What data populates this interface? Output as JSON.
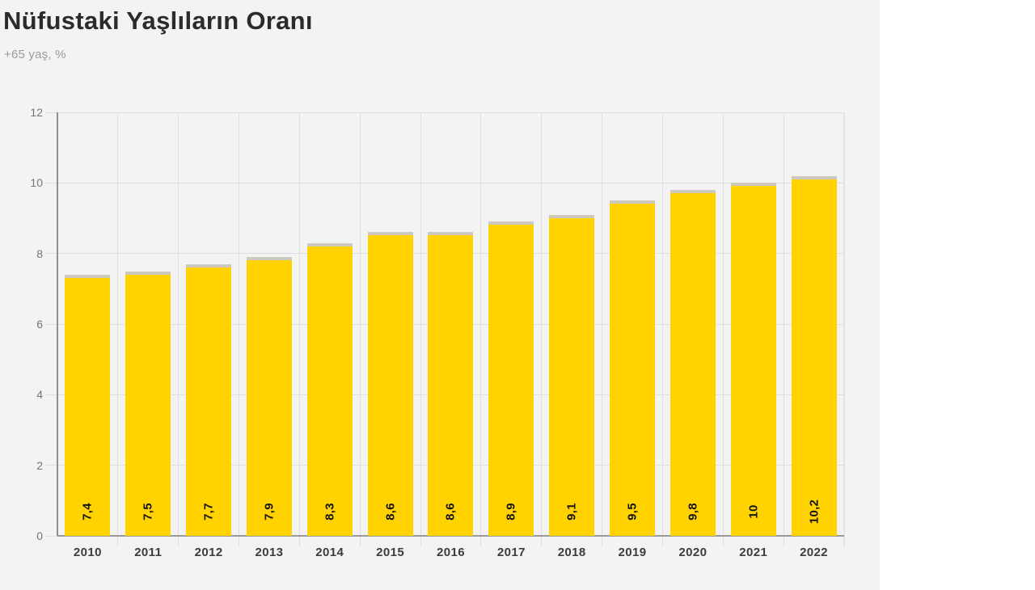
{
  "page": {
    "panel_background": "#f3f3f3",
    "outer_background": "#ffffff"
  },
  "header": {
    "title": "Nüfustaki Yaşlıların Oranı",
    "subtitle": "+65 yaş, %"
  },
  "chart_data": {
    "type": "bar",
    "title": "Nüfustaki Yaşlıların Oranı",
    "subtitle": "+65 yaş, %",
    "categories": [
      "2010",
      "2011",
      "2012",
      "2013",
      "2014",
      "2015",
      "2016",
      "2017",
      "2018",
      "2019",
      "2020",
      "2021",
      "2022"
    ],
    "values": [
      7.4,
      7.5,
      7.7,
      7.9,
      8.3,
      8.6,
      8.6,
      8.9,
      9.1,
      9.5,
      9.8,
      10,
      10.2
    ],
    "value_labels": [
      "7,4",
      "7,5",
      "7,7",
      "7,9",
      "8,3",
      "8,6",
      "8,6",
      "8,9",
      "9,1",
      "9,5",
      "9,8",
      "10",
      "10,2"
    ],
    "xlabel": "",
    "ylabel": "",
    "ylim": [
      0,
      12
    ],
    "yticks": [
      0,
      2,
      4,
      6,
      8,
      10,
      12
    ],
    "ytick_labels": [
      "0",
      "2",
      "4",
      "6",
      "8",
      "10",
      "12"
    ],
    "grid": true,
    "legend": "none",
    "bar_color": "#ffd200",
    "bar_cap_color": "#cdc9bd",
    "value_label_color": "#141414",
    "gridline_color": "#dfdfdf",
    "axis_line_color": "#8f8f8f"
  }
}
